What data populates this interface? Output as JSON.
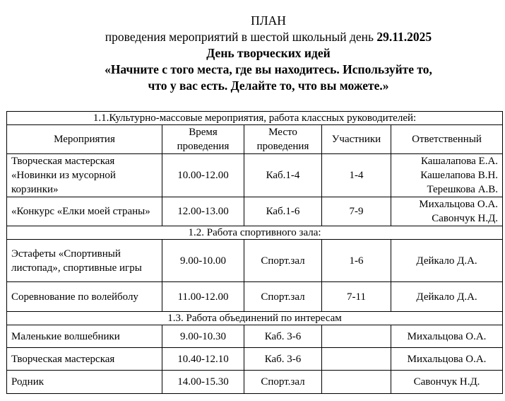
{
  "header": {
    "title": "ПЛАН",
    "subtitle_prefix": "проведения мероприятий в шестой школьный день ",
    "date": "29.11.2025",
    "day_name": "День творческих идей",
    "quote_line1": "«Начните с того места, где вы находитесь. Используйте то,",
    "quote_line2": "что у вас есть. Делайте то, что вы можете.»"
  },
  "table": {
    "columns": [
      "Мероприятия",
      "Время проведения",
      "Место проведения",
      "Участники",
      "Ответственный"
    ],
    "sections": [
      {
        "title": "1.1.Культурно-массовые мероприятия, работа классных руководителей:",
        "rows": [
          {
            "event": "Творческая мастерская «Новинки из мусорной корзинки»",
            "time": "10.00-12.00",
            "place": "Каб.1-4",
            "participants": "1-4",
            "responsible": [
              "Кашалапова Е.А.",
              "Кашелапова В.Н.",
              "Терешкова А.В."
            ]
          },
          {
            "event": "«Конкурс «Елки моей страны»",
            "time": "12.00-13.00",
            "place": "Каб.1-6",
            "participants": "7-9",
            "responsible": [
              "Михальцова О.А.",
              "Савончук Н.Д."
            ]
          }
        ]
      },
      {
        "title": "1.2. Работа спортивного зала:",
        "rows": [
          {
            "event": "Эстафеты «Спортивный листопад», спортивные игры",
            "time": "9.00-10.00",
            "place": "Спорт.зал",
            "participants": "1-6",
            "responsible": [
              "Дейкало Д.А."
            ]
          },
          {
            "event": "Соревнование по волейболу",
            "time": "11.00-12.00",
            "place": "Спорт.зал",
            "participants": "7-11",
            "responsible": [
              "Дейкало Д.А."
            ]
          }
        ]
      },
      {
        "title": "1.3. Работа объединений по интересам",
        "rows": [
          {
            "event": "Маленькие волшебники",
            "time": "9.00-10.30",
            "place": "Каб. 3-6",
            "participants": "",
            "responsible": [
              "Михальцова О.А."
            ]
          },
          {
            "event": "Творческая мастерская",
            "time": "10.40-12.10",
            "place": "Каб. 3-6",
            "participants": "",
            "responsible": [
              "Михальцова О.А."
            ]
          },
          {
            "event": "Родник",
            "time": "14.00-15.30",
            "place": "Спорт.зал",
            "participants": "",
            "responsible": [
              "Савончук Н.Д."
            ]
          }
        ]
      }
    ]
  }
}
